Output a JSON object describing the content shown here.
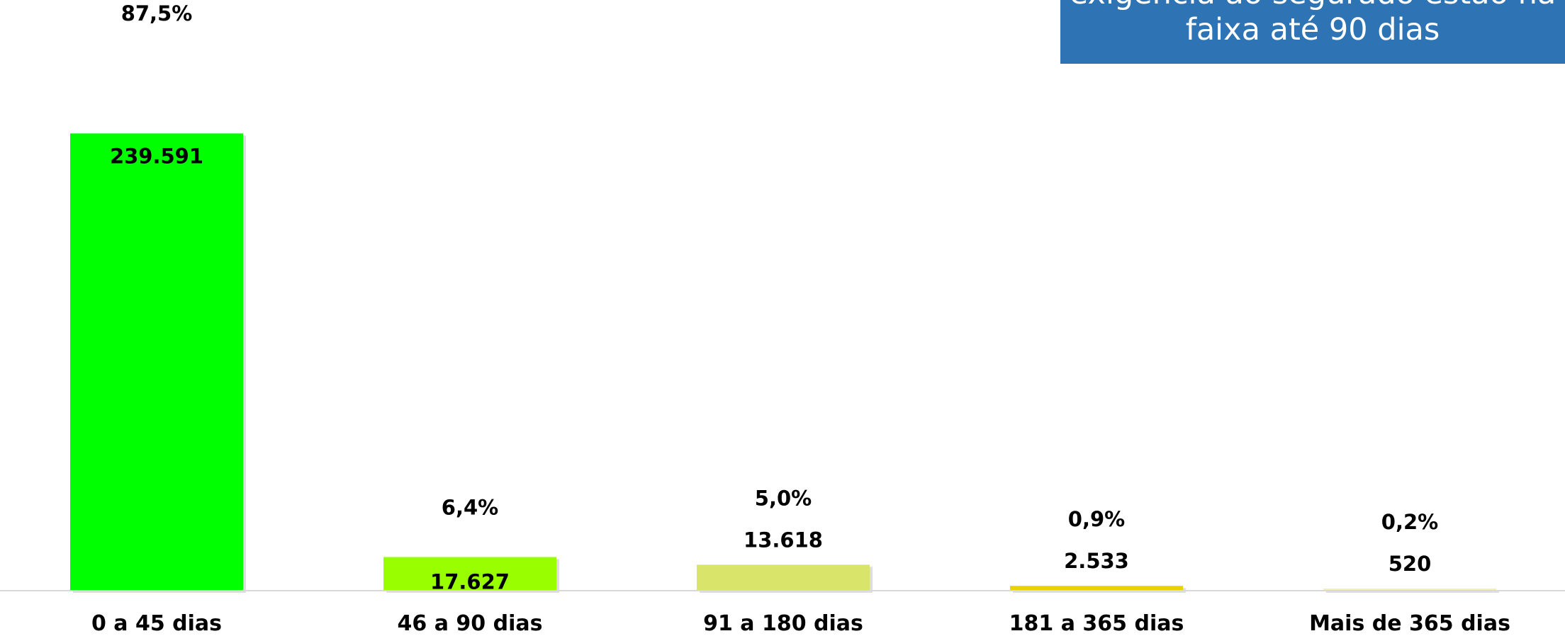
{
  "chart_data": {
    "type": "bar",
    "categories": [
      "0 a 45 dias",
      "46 a 90 dias",
      "91 a 180 dias",
      "181 a 365 dias",
      "Mais de 365 dias"
    ],
    "values": [
      239591,
      17627,
      13618,
      2533,
      520
    ],
    "value_labels": [
      "239.591",
      "17.627",
      "13.618",
      "2.533",
      "520"
    ],
    "percent_labels": [
      "87,5%",
      "6,4%",
      "5,0%",
      "0,9%",
      "0,2%"
    ],
    "colors": [
      "#00FF00",
      "#99FF00",
      "#D9E56A",
      "#E8D200",
      "#F5EFB4"
    ],
    "ylim": [
      0,
      262000
    ],
    "grid": false,
    "legend": "none"
  },
  "callout": {
    "line1": "exigência ao segurado estão na",
    "line2": "faixa até 90 dias",
    "color": "#2E74B5"
  }
}
